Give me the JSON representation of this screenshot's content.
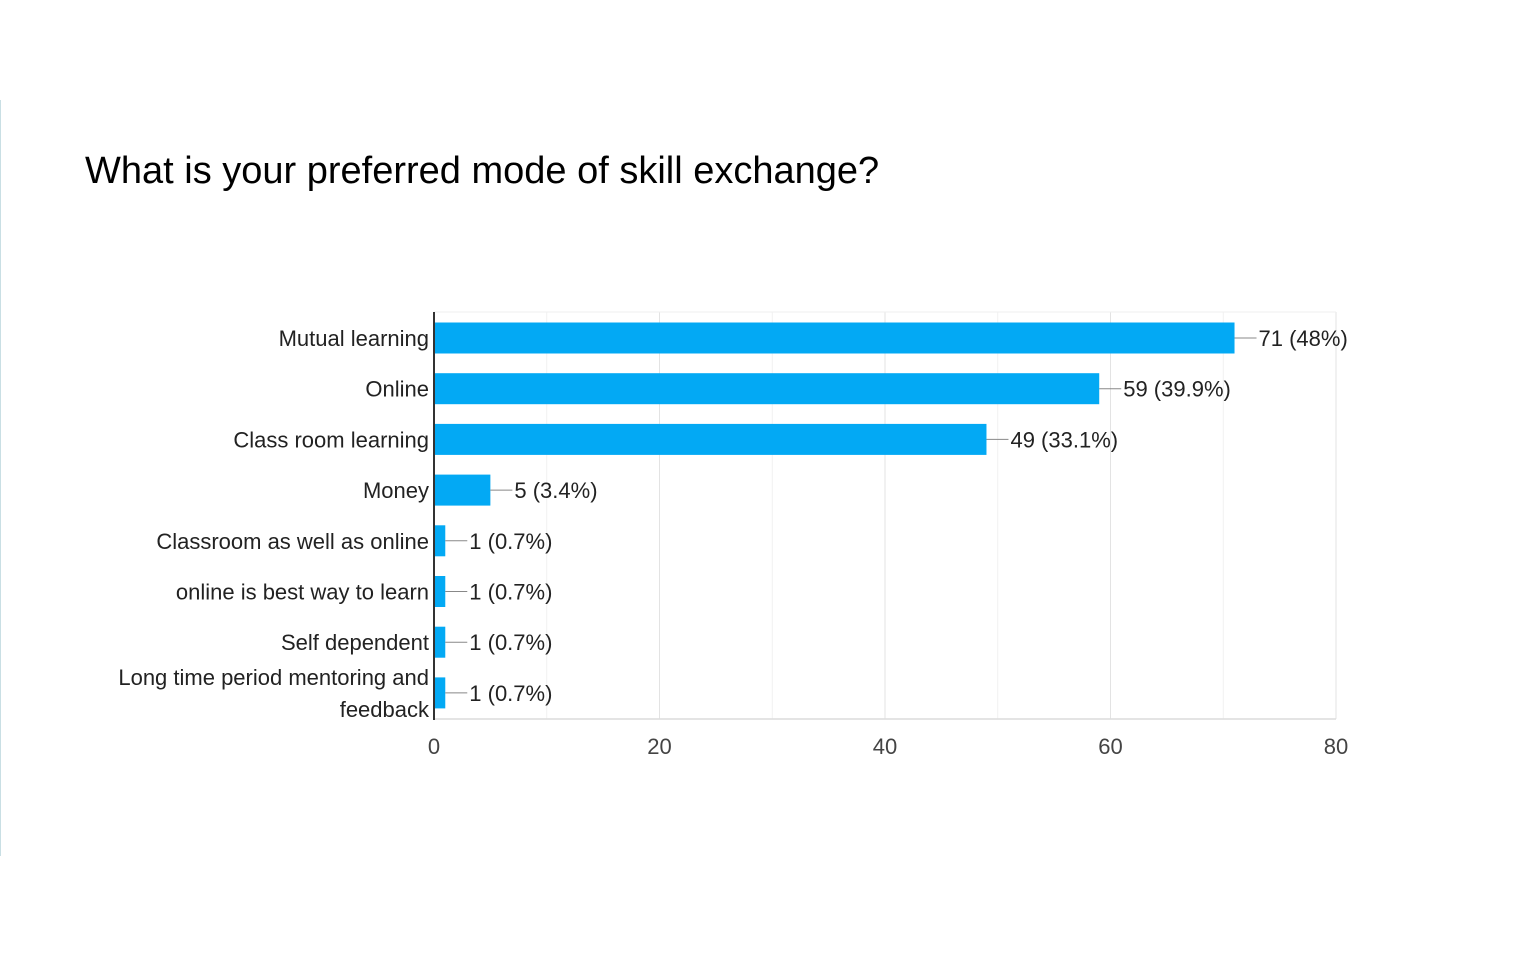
{
  "question": {
    "title": "What is your preferred mode of skill exchange?"
  },
  "colors": {
    "bar": "#03a9f4",
    "grid": "#ebebeb",
    "axis": "#333333",
    "label_text": "#222222",
    "tick_text": "#444444",
    "leader_line": "#888888"
  },
  "chart_data": {
    "type": "bar",
    "orientation": "horizontal",
    "title": "",
    "xlabel": "",
    "ylabel": "",
    "categories": [
      "Mutual learning",
      "Online",
      "Class room learning",
      "Money",
      "Classroom as well as online",
      "online is best way to learn",
      "Self dependent",
      "Long time period mentoring and feedback"
    ],
    "category_lines": [
      [
        "Mutual learning"
      ],
      [
        "Online"
      ],
      [
        "Class room learning"
      ],
      [
        "Money"
      ],
      [
        "Classroom as well as online"
      ],
      [
        "online is best way to learn"
      ],
      [
        "Self dependent"
      ],
      [
        "Long time period mentoring and",
        "feedback"
      ]
    ],
    "values": [
      71,
      59,
      49,
      5,
      1,
      1,
      1,
      1
    ],
    "data_labels": [
      "71 (48%)",
      "59 (39.9%)",
      "49 (33.1%)",
      "5 (3.4%)",
      "1 (0.7%)",
      "1 (0.7%)",
      "1 (0.7%)",
      "1 (0.7%)"
    ],
    "xlim": [
      0,
      80
    ],
    "xticks": [
      0,
      20,
      40,
      60,
      80
    ],
    "xtick_labels": [
      "0",
      "20",
      "40",
      "60",
      "80"
    ],
    "minor_gridlines_every": 10,
    "grid": true,
    "legend": "none"
  }
}
